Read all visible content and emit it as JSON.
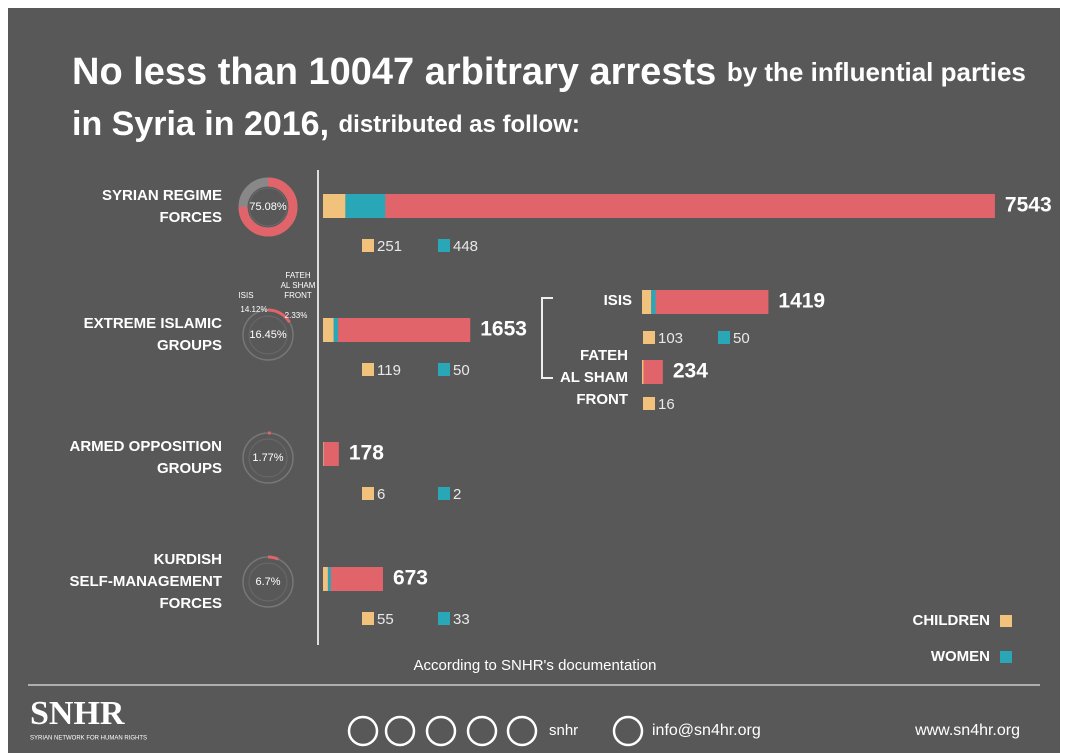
{
  "chart_data": {
    "type": "bar",
    "title_line1_bold": "No less than 10047 arbitrary arrests",
    "title_line1_rest": "by the influential parties",
    "title_line2_bold": "in Syria in 2016,",
    "title_line2_rest": "distributed as follow:",
    "total_color": "#e0646a",
    "children_color": "#f1c27b",
    "women_color": "#2aa7b6",
    "groups": [
      {
        "name_lines": [
          "SYRIAN REGIME",
          "FORCES"
        ],
        "total": 7543,
        "children": 251,
        "women": 448,
        "share": 75.08,
        "share_label": "75.08%"
      },
      {
        "name_lines": [
          "EXTREME ISLAMIC",
          "GROUPS"
        ],
        "total": 1653,
        "children": 119,
        "women": 50,
        "share": 16.45,
        "share_label": "16.45%"
      },
      {
        "name_lines": [
          "ARMED OPPOSITION",
          "GROUPS"
        ],
        "total": 178,
        "children": 6,
        "women": 2,
        "share": 1.77,
        "share_label": "1.77%"
      },
      {
        "name_lines": [
          "KURDISH",
          "SELF-MANAGEMENT",
          "FORCES"
        ],
        "total": 673,
        "children": 55,
        "women": 33,
        "share": 6.7,
        "share_label": "6.7%"
      }
    ],
    "subgroups": [
      {
        "name_lines": [
          "ISIS"
        ],
        "total": 1419,
        "children": 103,
        "women": 50,
        "share": 14.12,
        "share_label": "14.12%"
      },
      {
        "name_lines": [
          "FATEH",
          "AL SHAM",
          "FRONT"
        ],
        "total": 234,
        "children": 16,
        "share": 2.33,
        "share_label": "2.33%"
      }
    ],
    "legend": [
      "CHILDREN",
      "WOMEN"
    ],
    "source": "According to SNHR's documentation",
    "footer": {
      "logo": "SNHR",
      "logo_sub": "SYRIAN NETWORK FOR HUMAN RIGHTS",
      "handle": "snhr",
      "email": "info@sn4hr.org",
      "website": "www.sn4hr.org"
    }
  }
}
